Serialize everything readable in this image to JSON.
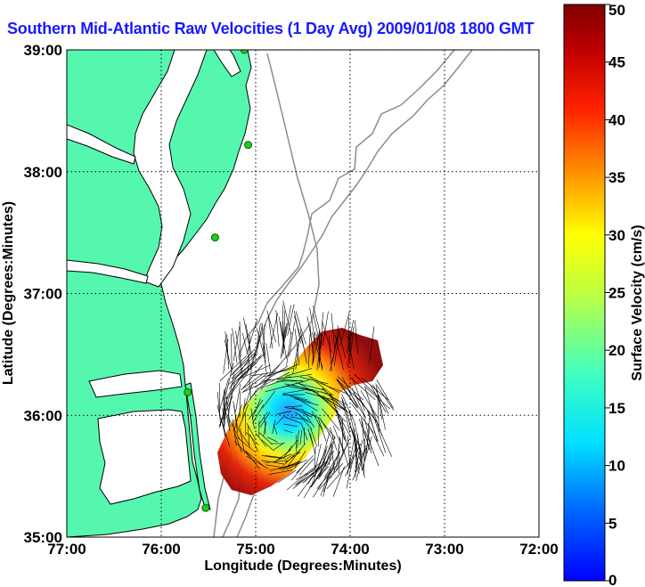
{
  "chart_data": {
    "type": "map",
    "title": "Southern Mid-Atlantic Raw Velocities (1 Day Avg) 2009/01/08 1800 GMT",
    "xlabel": "Longitude (Degrees:Minutes)",
    "ylabel": "Latitude (Degrees:Minutes)",
    "xlim": [
      -77.0,
      -72.0
    ],
    "ylim": [
      35.0,
      39.0
    ],
    "x_ticks": [
      {
        "value": -77.0,
        "label": "77:00"
      },
      {
        "value": -76.0,
        "label": "76:00"
      },
      {
        "value": -75.0,
        "label": "75:00"
      },
      {
        "value": -74.0,
        "label": "74:00"
      },
      {
        "value": -73.0,
        "label": "73:00"
      },
      {
        "value": -72.0,
        "label": "72:00"
      }
    ],
    "y_ticks": [
      {
        "value": 35.0,
        "label": "35:00"
      },
      {
        "value": 36.0,
        "label": "36:00"
      },
      {
        "value": 37.0,
        "label": "37:00"
      },
      {
        "value": 38.0,
        "label": "38:00"
      },
      {
        "value": 39.0,
        "label": "39:00"
      }
    ],
    "grid": true,
    "colorbar": {
      "label": "Surface Velocity (cm/s)",
      "range": [
        0,
        50
      ],
      "ticks": [
        0,
        5,
        10,
        15,
        20,
        25,
        30,
        35,
        40,
        45,
        50
      ],
      "colormap": "jet"
    },
    "colors": {
      "land": "#55f7ae",
      "coastline": "#000000",
      "bathymetry": "#8c8c8c",
      "title": "#1a1aff",
      "station": "#22cc22"
    },
    "stations": [
      {
        "lon": -75.12,
        "lat": 39.0
      },
      {
        "lon": -75.08,
        "lat": 38.22
      },
      {
        "lon": -75.43,
        "lat": 37.46
      },
      {
        "lon": -75.72,
        "lat": 36.19
      },
      {
        "lon": -75.53,
        "lat": 35.24
      }
    ],
    "velocity_field_center": {
      "lon": -74.72,
      "lat": 35.85,
      "max_speed_cm_s": 50,
      "min_speed_cm_s": 5
    }
  }
}
